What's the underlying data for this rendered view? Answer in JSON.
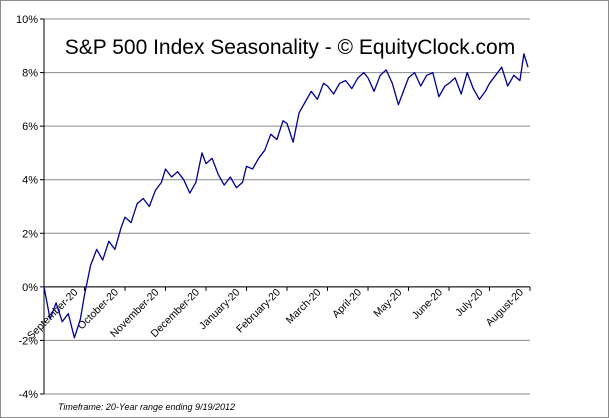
{
  "chart_data": {
    "type": "line",
    "title": "S&P 500 Index Seasonality - © EquityClock.com",
    "footnote": "Timeframe: 20-Year range ending 9/19/2012",
    "ylim": [
      -4,
      10
    ],
    "y_ticks": [
      "10%",
      "8%",
      "6%",
      "4%",
      "2%",
      "0%",
      "-2%",
      "-4%"
    ],
    "y_tick_values": [
      10,
      8,
      6,
      4,
      2,
      0,
      -2,
      -4
    ],
    "categories": [
      "September-20",
      "October-20",
      "November-20",
      "December-20",
      "January-20",
      "February-20",
      "March-20",
      "April-20",
      "May-20",
      "June-20",
      "July-20",
      "August-20"
    ],
    "grid": true,
    "line_color": "#00008b",
    "series": [
      {
        "name": "",
        "x": [
          0,
          0.15,
          0.3,
          0.45,
          0.6,
          0.75,
          0.9,
          1.0,
          1.15,
          1.3,
          1.45,
          1.6,
          1.75,
          1.9,
          2.0,
          2.15,
          2.3,
          2.45,
          2.6,
          2.75,
          2.9,
          3.0,
          3.15,
          3.3,
          3.45,
          3.6,
          3.75,
          3.9,
          4.0,
          4.15,
          4.3,
          4.45,
          4.6,
          4.75,
          4.9,
          5.0,
          5.15,
          5.3,
          5.45,
          5.6,
          5.75,
          5.9,
          6.0,
          6.15,
          6.3,
          6.45,
          6.6,
          6.75,
          6.9,
          7.0,
          7.15,
          7.3,
          7.45,
          7.6,
          7.75,
          7.9,
          8.0,
          8.15,
          8.3,
          8.45,
          8.6,
          8.75,
          8.9,
          9.0,
          9.15,
          9.3,
          9.45,
          9.6,
          9.75,
          9.9,
          10.0,
          10.15,
          10.3,
          10.45,
          10.6,
          10.75,
          10.9,
          11.0,
          11.15,
          11.3,
          11.45,
          11.6,
          11.75,
          11.85,
          11.95
        ],
        "values": [
          0.0,
          -1.2,
          -0.6,
          -1.3,
          -1.0,
          -1.9,
          -1.2,
          -0.3,
          0.8,
          1.4,
          1.0,
          1.7,
          1.4,
          2.2,
          2.6,
          2.4,
          3.1,
          3.3,
          3.0,
          3.6,
          3.9,
          4.4,
          4.1,
          4.3,
          4.0,
          3.5,
          3.9,
          5.0,
          4.6,
          4.8,
          4.2,
          3.8,
          4.1,
          3.7,
          3.9,
          4.5,
          4.4,
          4.8,
          5.1,
          5.7,
          5.5,
          6.2,
          6.1,
          5.4,
          6.5,
          6.9,
          7.3,
          7.0,
          7.6,
          7.5,
          7.2,
          7.6,
          7.7,
          7.4,
          7.8,
          8.0,
          7.8,
          7.3,
          7.9,
          8.1,
          7.6,
          6.8,
          7.4,
          7.8,
          8.0,
          7.5,
          7.9,
          8.0,
          7.1,
          7.5,
          7.6,
          7.8,
          7.2,
          8.0,
          7.4,
          7.0,
          7.3,
          7.6,
          7.9,
          8.2,
          7.5,
          7.9,
          7.7,
          8.7,
          8.2
        ]
      }
    ]
  }
}
